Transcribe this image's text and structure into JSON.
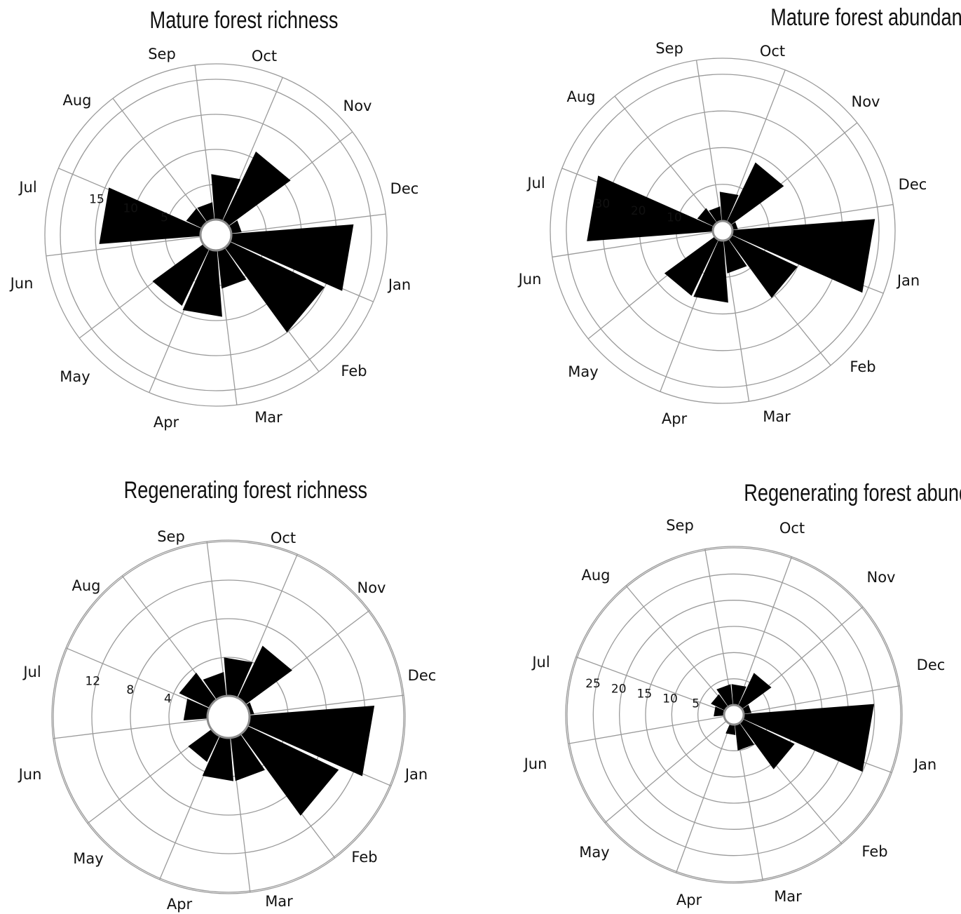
{
  "chart_data": [
    {
      "type": "polar-bar",
      "title": "Mature forest richness",
      "categories": [
        "Jan",
        "Feb",
        "Mar",
        "Apr",
        "May",
        "Jun",
        "Jul",
        "Aug",
        "Sep",
        "Oct",
        "Nov",
        "Dec"
      ],
      "values": [
        17.5,
        15,
        5.5,
        9.5,
        9,
        0,
        14.5,
        2.5,
        2.5,
        6.5,
        11,
        1.5
      ],
      "rlim": [
        0,
        22
      ],
      "rings": [
        5,
        10,
        15,
        20
      ],
      "tick_labels": [
        "5",
        "10",
        "15"
      ],
      "grid": true
    },
    {
      "type": "polar-bar",
      "title": "Mature forest abundance",
      "categories": [
        "Jan",
        "Feb",
        "Mar",
        "Apr",
        "May",
        "Jun",
        "Jul",
        "Aug",
        "Sep",
        "Oct",
        "Nov",
        "Dec"
      ],
      "values": [
        39,
        20,
        9,
        17,
        17,
        0,
        34.5,
        5,
        4,
        8,
        18,
        1.5
      ],
      "rlim": [
        0,
        44
      ],
      "rings": [
        10,
        20,
        30,
        40
      ],
      "tick_labels": [
        "10",
        "20",
        "30"
      ],
      "grid": true
    },
    {
      "type": "polar-bar",
      "title": "Regenerating forest richness",
      "categories": [
        "Jan",
        "Feb",
        "Mar",
        "Apr",
        "May",
        "Jun",
        "Jul",
        "Aug",
        "Sep",
        "Oct",
        "Nov",
        "Dec"
      ],
      "values": [
        13,
        10.5,
        4.5,
        4.5,
        3,
        0,
        2.5,
        3.5,
        2.5,
        4,
        6,
        0.5
      ],
      "rlim": [
        0,
        16
      ],
      "rings": [
        4,
        8,
        12,
        16
      ],
      "tick_labels": [
        "4",
        "8",
        "12"
      ],
      "grid": true
    },
    {
      "type": "polar-bar",
      "title": "Regenerating forest abundance",
      "categories": [
        "Jan",
        "Feb",
        "Mar",
        "Apr",
        "May",
        "Jun",
        "Jul",
        "Aug",
        "Sep",
        "Oct",
        "Nov",
        "Dec"
      ],
      "values": [
        25,
        11,
        5,
        2,
        0,
        0,
        2,
        3,
        4,
        4,
        7,
        1.5
      ],
      "rlim": [
        0,
        30
      ],
      "rings": [
        5,
        10,
        15,
        20,
        25,
        30
      ],
      "tick_labels": [
        "5",
        "10",
        "15",
        "20",
        "25"
      ],
      "grid": true
    }
  ]
}
